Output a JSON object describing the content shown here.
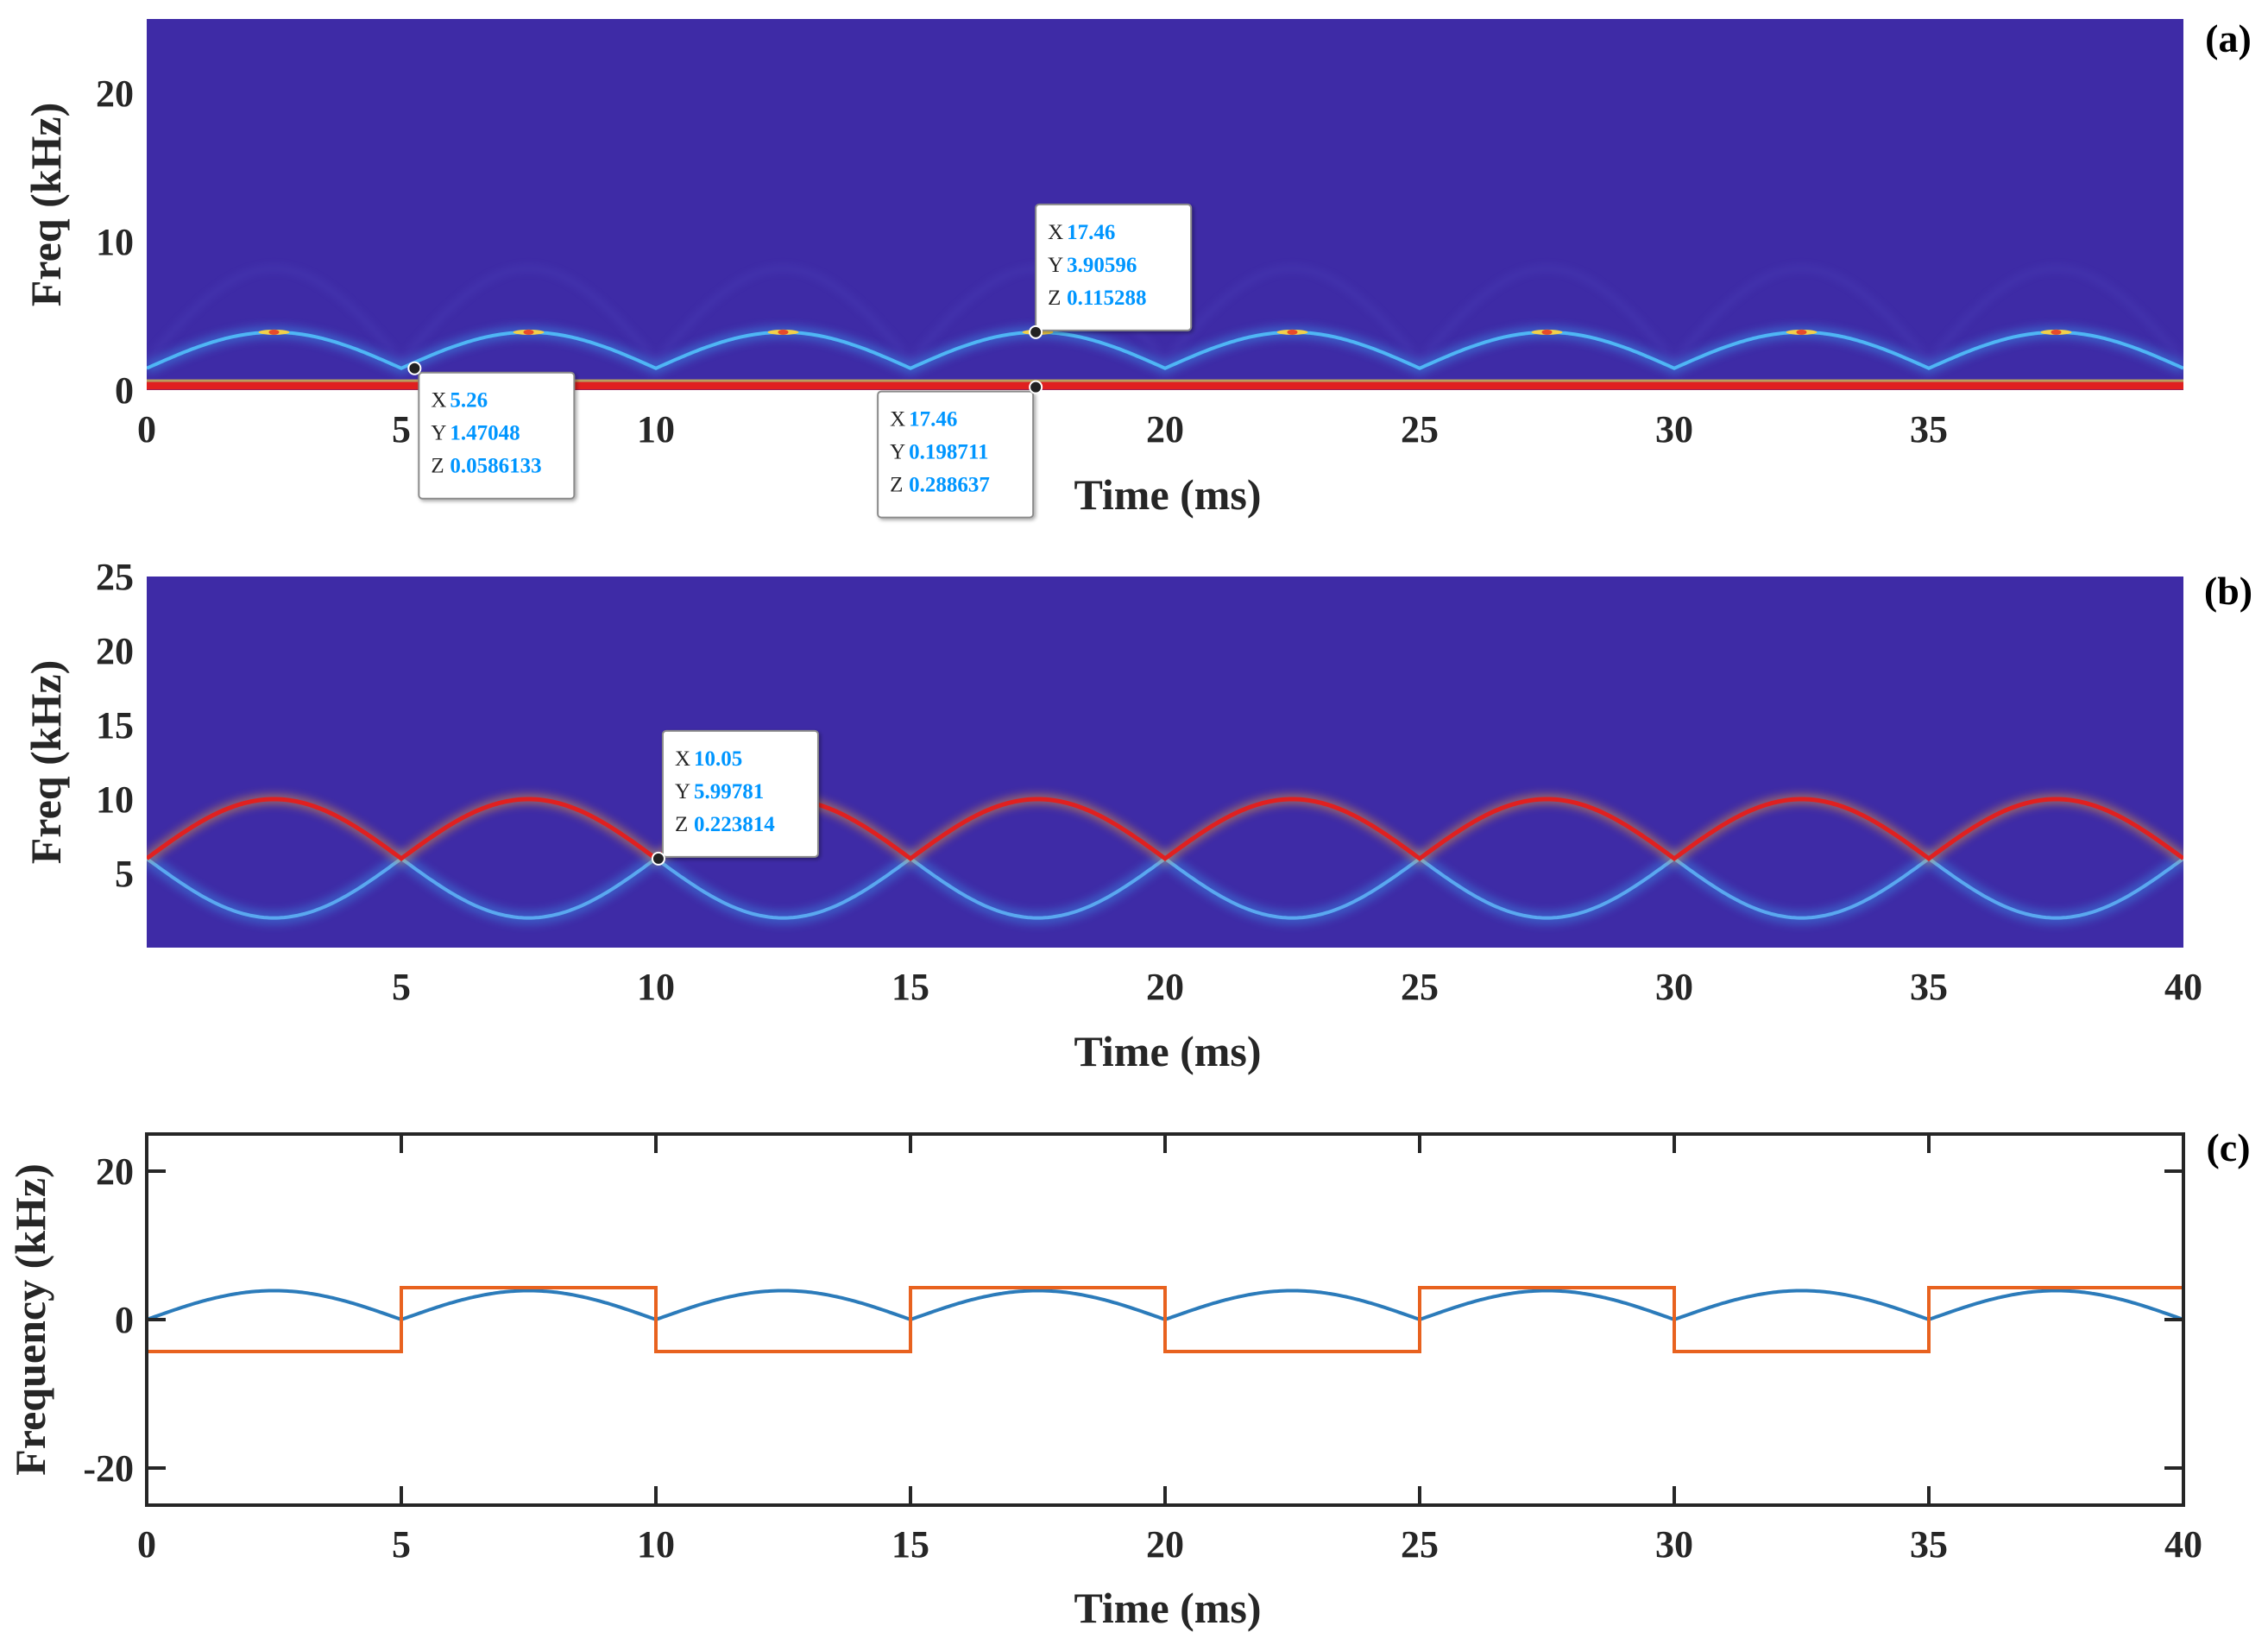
{
  "colors": {
    "spectrogram_bg": "#3e2ba6",
    "ridge_red": "#e02020",
    "ridge_cyan": "#3a8fe8",
    "series_blue": "#2b7bba",
    "series_orange": "#e8621f",
    "axis": "#262626",
    "datatip_value": "#0096ff"
  },
  "chart_data": [
    {
      "type": "heatmap",
      "panel_tag": "(a)",
      "xlabel": "Time (ms)",
      "ylabel": "Freq (kHz)",
      "xlim": [
        0,
        40
      ],
      "ylim": [
        0,
        25
      ],
      "xticks": [
        0,
        5,
        10,
        15,
        20,
        25,
        30,
        35
      ],
      "yticks": [
        0,
        10,
        20
      ],
      "ridges": [
        {
          "name": "arch",
          "period_ms": 5,
          "min_khz": 1.47,
          "max_khz": 3.9,
          "color": "cyan"
        },
        {
          "name": "dc",
          "freq_khz": 0.2,
          "color": "red"
        }
      ],
      "datatips": [
        {
          "x": "17.46",
          "y": "3.90596",
          "z": "0.115288",
          "anchor_x": 17.46,
          "anchor_y": 3.90596
        },
        {
          "x": "5.26",
          "y": "1.47048",
          "z": "0.0586133",
          "anchor_x": 5.26,
          "anchor_y": 1.47048
        },
        {
          "x": "17.46",
          "y": "0.198711",
          "z": "0.288637",
          "anchor_x": 17.46,
          "anchor_y": 0.198711
        }
      ]
    },
    {
      "type": "heatmap",
      "panel_tag": "(b)",
      "xlabel": "Time (ms)",
      "ylabel": "Freq (kHz)",
      "xlim": [
        0,
        40
      ],
      "ylim": [
        0,
        25
      ],
      "xticks": [
        5,
        10,
        15,
        20,
        25,
        30,
        35,
        40
      ],
      "yticks": [
        5,
        10,
        15,
        20,
        25
      ],
      "ridges": [
        {
          "name": "upper",
          "period_ms": 5,
          "min_khz": 6.0,
          "max_khz": 10.0,
          "color": "red"
        },
        {
          "name": "lower",
          "period_ms": 5,
          "min_khz": 2.0,
          "max_khz": 6.0,
          "color": "cyan"
        }
      ],
      "datatips": [
        {
          "x": "10.05",
          "y": "5.99781",
          "z": "0.223814",
          "anchor_x": 10.05,
          "anchor_y": 5.99781
        }
      ]
    },
    {
      "type": "line",
      "panel_tag": "(c)",
      "xlabel": "Time (ms)",
      "ylabel": "Frequency (kHz)",
      "xlim": [
        0,
        40
      ],
      "ylim": [
        -25,
        25
      ],
      "xticks": [
        0,
        5,
        10,
        15,
        20,
        25,
        30,
        35,
        40
      ],
      "yticks": [
        -20,
        0,
        20
      ],
      "series": [
        {
          "name": "estimated",
          "color": "blue",
          "period_ms": 5,
          "min_khz": 0.0,
          "max_khz": 3.9
        },
        {
          "name": "reference",
          "color": "orange",
          "x": [
            0,
            5,
            5,
            10,
            10,
            15,
            15,
            20,
            20,
            25,
            25,
            30,
            30,
            35,
            35,
            40
          ],
          "y": [
            -4.3,
            -4.3,
            4.3,
            4.3,
            -4.3,
            -4.3,
            4.3,
            4.3,
            -4.3,
            -4.3,
            4.3,
            4.3,
            -4.3,
            -4.3,
            4.3,
            4.3
          ]
        }
      ]
    }
  ]
}
